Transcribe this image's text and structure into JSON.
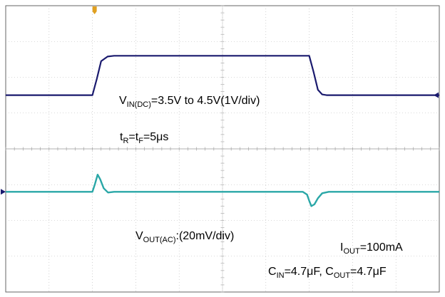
{
  "chart_data": {
    "type": "line",
    "title": "",
    "xlabel": "",
    "ylabel": "",
    "grid": true,
    "divisions": {
      "x": 10,
      "y": 8
    },
    "colors": {
      "vin": "#1a1a6e",
      "vout": "#2aa7a7",
      "trigger": "#e0a020",
      "grid": "#b5b5b5",
      "frame": "#666666"
    },
    "series": [
      {
        "name": "VIN(DC)",
        "x": [
          0,
          2.0,
          2.1,
          2.2,
          2.35,
          2.5,
          7.0,
          7.1,
          7.2,
          7.3,
          7.4,
          10
        ],
        "y": [
          1.5,
          1.5,
          1.95,
          2.45,
          2.58,
          2.6,
          2.6,
          2.15,
          1.65,
          1.52,
          1.5,
          1.5
        ]
      },
      {
        "name": "VOUT(AC)",
        "x": [
          0,
          2.0,
          2.06,
          2.12,
          2.18,
          2.26,
          2.36,
          2.5,
          6.85,
          6.95,
          7.0,
          7.05,
          7.12,
          7.2,
          7.3,
          7.45,
          10
        ],
        "y": [
          -1.2,
          -1.2,
          -0.98,
          -0.72,
          -0.85,
          -1.1,
          -1.22,
          -1.2,
          -1.2,
          -1.28,
          -1.45,
          -1.6,
          -1.55,
          -1.38,
          -1.24,
          -1.2,
          -1.2
        ]
      }
    ],
    "annotations": {
      "vin_prefix": "V",
      "vin_sub": "IN(DC)",
      "vin_rest": "=3.5V to 4.5V(1V/div)",
      "trf_t1": "t",
      "trf_sub1": "R",
      "trf_mid": "=t",
      "trf_sub2": "F",
      "trf_rest": "=5μs",
      "vout_prefix": "V",
      "vout_sub": "OUT(AC)",
      "vout_rest": ":(20mV/div)",
      "iout_prefix": "I",
      "iout_sub": "OUT",
      "iout_rest": "=100mA",
      "c_in_prefix": "C",
      "c_in_sub": "IN",
      "c_in_rest": "=4.7μF, C",
      "c_out_sub": "OUT",
      "c_out_rest": "=4.7μF"
    }
  }
}
